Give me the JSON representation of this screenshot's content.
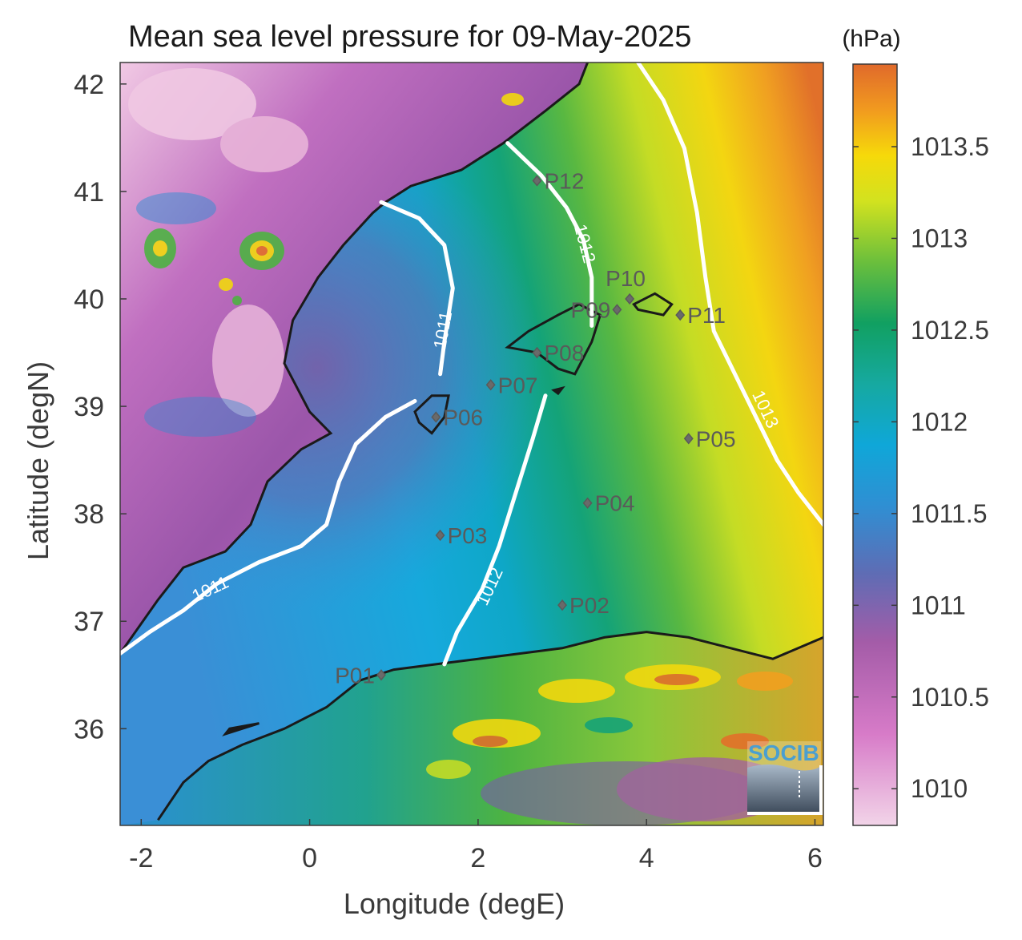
{
  "title": "Mean sea level pressure for 09-May-2025",
  "colorbar": {
    "unit": "(hPa)",
    "min": 1009.8,
    "max": 1013.95,
    "ticks": [
      1010,
      1010.5,
      1011,
      1011.5,
      1012,
      1012.5,
      1013,
      1013.5
    ],
    "tick_labels": [
      "1010",
      "1010.5",
      "1011",
      "1011.5",
      "1012",
      "1012.5",
      "1013",
      "1013.5"
    ]
  },
  "chart_data": {
    "type": "heatmap",
    "title": "Mean sea level pressure for 09-May-2025",
    "xlabel": "Longitude (degE)",
    "ylabel": "Latitude (degN)",
    "xlim": [
      -2.25,
      6.1
    ],
    "ylim": [
      35.1,
      42.2
    ],
    "xticks": [
      -2,
      0,
      2,
      4,
      6
    ],
    "xtick_labels": [
      "-2",
      "0",
      "2",
      "4",
      "6"
    ],
    "yticks": [
      36,
      37,
      38,
      39,
      40,
      41,
      42
    ],
    "ytick_labels": [
      "36",
      "37",
      "38",
      "39",
      "40",
      "41",
      "42"
    ],
    "value_unit": "hPa",
    "contour_levels": [
      1011,
      1012,
      1013
    ],
    "contours": [
      {
        "level": 1011,
        "label": "1011",
        "segments": [
          [
            [
              -2.25,
              36.7
            ],
            [
              -1.9,
              36.9
            ],
            [
              -1.5,
              37.1
            ],
            [
              -1.1,
              37.35
            ],
            [
              -0.6,
              37.55
            ],
            [
              -0.1,
              37.7
            ],
            [
              0.2,
              37.9
            ],
            [
              0.35,
              38.3
            ],
            [
              0.55,
              38.65
            ],
            [
              0.9,
              38.9
            ],
            [
              1.25,
              39.05
            ]
          ],
          [
            [
              1.55,
              39.3
            ],
            [
              1.6,
              39.6
            ],
            [
              1.7,
              40.1
            ],
            [
              1.6,
              40.5
            ],
            [
              1.3,
              40.75
            ],
            [
              0.85,
              40.9
            ]
          ]
        ],
        "label_positions": [
          [
            -1.15,
            37.25
          ],
          [
            1.65,
            39.7
          ]
        ]
      },
      {
        "level": 1012,
        "label": "1012",
        "segments": [
          [
            [
              1.6,
              36.6
            ],
            [
              1.75,
              36.9
            ],
            [
              2.05,
              37.3
            ],
            [
              2.25,
              37.7
            ],
            [
              2.45,
              38.2
            ],
            [
              2.65,
              38.7
            ],
            [
              2.8,
              39.1
            ]
          ],
          [
            [
              3.35,
              39.75
            ],
            [
              3.35,
              40.2
            ],
            [
              3.25,
              40.55
            ],
            [
              3.05,
              40.85
            ],
            [
              2.75,
              41.15
            ],
            [
              2.35,
              41.45
            ]
          ]
        ],
        "label_positions": [
          [
            2.2,
            37.3
          ],
          [
            3.2,
            40.5
          ]
        ]
      },
      {
        "level": 1013,
        "label": "1013",
        "segments": [
          [
            [
              3.9,
              42.2
            ],
            [
              4.2,
              41.85
            ],
            [
              4.45,
              41.4
            ],
            [
              4.6,
              40.8
            ],
            [
              4.7,
              40.2
            ],
            [
              4.8,
              39.7
            ],
            [
              5.05,
              39.3
            ],
            [
              5.3,
              38.9
            ],
            [
              5.55,
              38.5
            ],
            [
              5.8,
              38.2
            ],
            [
              6.1,
              37.9
            ]
          ]
        ],
        "label_positions": [
          [
            5.35,
            38.95
          ]
        ]
      }
    ],
    "stations": [
      {
        "name": "P01",
        "lon": 0.85,
        "lat": 36.5,
        "label_side": "left"
      },
      {
        "name": "P02",
        "lon": 3.0,
        "lat": 37.15,
        "label_side": "right"
      },
      {
        "name": "P03",
        "lon": 1.55,
        "lat": 37.8,
        "label_side": "right"
      },
      {
        "name": "P04",
        "lon": 3.3,
        "lat": 38.1,
        "label_side": "right"
      },
      {
        "name": "P05",
        "lon": 4.5,
        "lat": 38.7,
        "label_side": "right"
      },
      {
        "name": "P06",
        "lon": 1.5,
        "lat": 38.9,
        "label_side": "right"
      },
      {
        "name": "P07",
        "lon": 2.15,
        "lat": 39.2,
        "label_side": "right"
      },
      {
        "name": "P08",
        "lon": 2.7,
        "lat": 39.5,
        "label_side": "right"
      },
      {
        "name": "P09",
        "lon": 3.65,
        "lat": 39.9,
        "label_side": "left"
      },
      {
        "name": "P10",
        "lon": 3.8,
        "lat": 40.0,
        "label_side": "top"
      },
      {
        "name": "P11",
        "lon": 4.4,
        "lat": 39.85,
        "label_side": "right"
      },
      {
        "name": "P12",
        "lon": 2.7,
        "lat": 41.1,
        "label_side": "right"
      }
    ],
    "coastline": {
      "iberia_east": [
        [
          -1.8,
          35.15
        ],
        [
          -1.5,
          35.5
        ],
        [
          -1.2,
          35.7
        ],
        [
          -0.8,
          35.85
        ],
        [
          -0.3,
          36.0
        ],
        [
          0.2,
          36.2
        ],
        [
          0.6,
          36.45
        ],
        [
          1.0,
          36.55
        ],
        [
          1.5,
          36.6
        ],
        [
          2.0,
          36.65
        ],
        [
          2.5,
          36.7
        ],
        [
          3.0,
          36.75
        ],
        [
          3.5,
          36.85
        ],
        [
          4.0,
          36.9
        ],
        [
          4.5,
          36.85
        ],
        [
          5.0,
          36.75
        ],
        [
          5.5,
          36.65
        ],
        [
          6.1,
          36.85
        ]
      ],
      "spain_mainland": [
        [
          -2.25,
          36.7
        ],
        [
          -1.8,
          37.2
        ],
        [
          -1.5,
          37.5
        ],
        [
          -1.0,
          37.65
        ],
        [
          -0.7,
          37.9
        ],
        [
          -0.5,
          38.3
        ],
        [
          -0.1,
          38.6
        ],
        [
          0.25,
          38.75
        ],
        [
          0.0,
          38.95
        ],
        [
          -0.3,
          39.4
        ],
        [
          -0.2,
          39.8
        ],
        [
          0.1,
          40.2
        ],
        [
          0.4,
          40.5
        ],
        [
          0.75,
          40.8
        ],
        [
          0.9,
          40.9
        ],
        [
          1.2,
          41.05
        ],
        [
          1.8,
          41.2
        ],
        [
          2.3,
          41.45
        ],
        [
          2.8,
          41.75
        ],
        [
          3.2,
          42.0
        ],
        [
          3.3,
          42.2
        ]
      ],
      "mallorca": [
        [
          2.35,
          39.55
        ],
        [
          2.6,
          39.7
        ],
        [
          2.95,
          39.85
        ],
        [
          3.2,
          39.95
        ],
        [
          3.45,
          39.85
        ],
        [
          3.35,
          39.6
        ],
        [
          3.15,
          39.3
        ],
        [
          2.95,
          39.35
        ],
        [
          2.7,
          39.5
        ],
        [
          2.35,
          39.55
        ]
      ],
      "menorca": [
        [
          3.85,
          39.95
        ],
        [
          4.1,
          40.05
        ],
        [
          4.3,
          39.95
        ],
        [
          4.2,
          39.85
        ],
        [
          3.9,
          39.9
        ],
        [
          3.85,
          39.95
        ]
      ],
      "ibiza": [
        [
          1.25,
          38.95
        ],
        [
          1.45,
          39.1
        ],
        [
          1.65,
          39.1
        ],
        [
          1.6,
          38.9
        ],
        [
          1.45,
          38.75
        ],
        [
          1.3,
          38.85
        ],
        [
          1.25,
          38.95
        ]
      ],
      "cabrera": [
        [
          2.9,
          39.15
        ],
        [
          3.0,
          39.17
        ],
        [
          2.95,
          39.12
        ],
        [
          2.9,
          39.15
        ]
      ],
      "alboran_island": [
        [
          -1.0,
          35.95
        ],
        [
          -0.6,
          36.05
        ],
        [
          -0.95,
          36.0
        ],
        [
          -1.0,
          35.95
        ]
      ]
    },
    "grid": false,
    "legend": "colorbar-right"
  },
  "logo": {
    "text": "SOCIB"
  }
}
